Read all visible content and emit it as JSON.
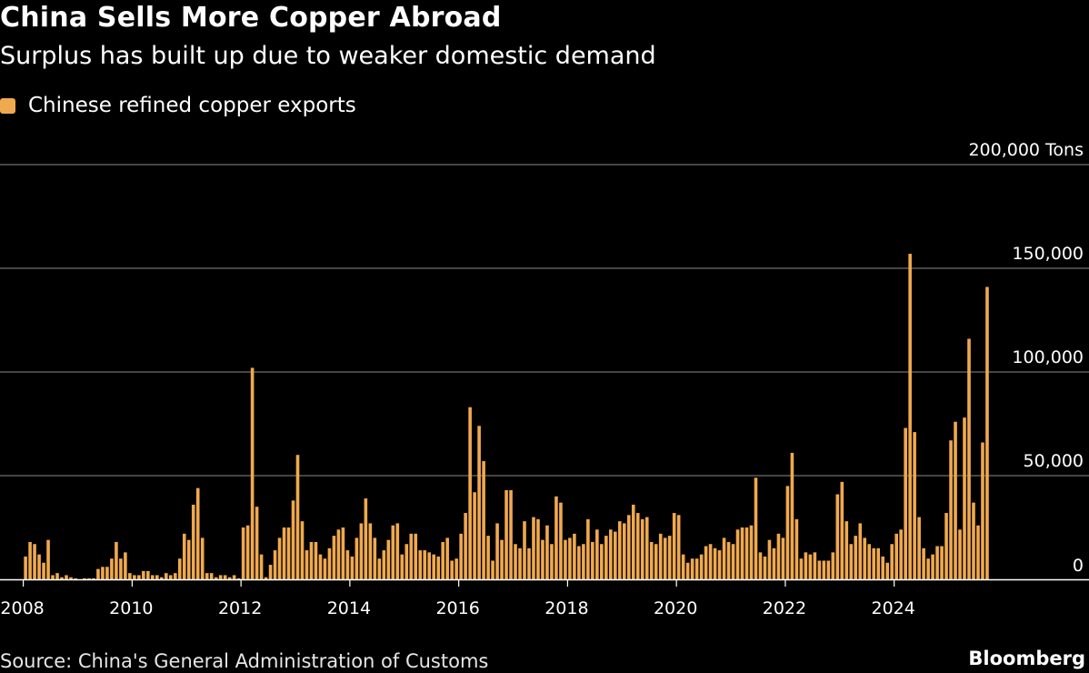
{
  "header": {
    "title": "China Sells More Copper Abroad",
    "subtitle": "Surplus has built up due to weaker domestic demand"
  },
  "legend": {
    "label": "Chinese refined copper exports"
  },
  "footer": {
    "source": "Source: China's General Administration of Customs",
    "brand": "Bloomberg"
  },
  "colors": {
    "background": "#000000",
    "bar": "#f0a94e",
    "grid": "#8a8a8a",
    "axis": "#ffffff",
    "text": "#ffffff"
  },
  "chart_data": {
    "type": "bar",
    "series": [
      {
        "name": "Chinese refined copper exports",
        "start": "2008-01",
        "frequency": "monthly",
        "values": [
          11000,
          18000,
          17000,
          12000,
          8000,
          19000,
          2000,
          3000,
          1000,
          2000,
          1000,
          500,
          0,
          500,
          500,
          500,
          5000,
          6000,
          6000,
          10000,
          18000,
          10000,
          13000,
          3000,
          2000,
          2000,
          4000,
          4000,
          2000,
          2000,
          1000,
          3000,
          2000,
          3000,
          10000,
          22000,
          19000,
          36000,
          44000,
          20000,
          3000,
          3000,
          1000,
          2000,
          2000,
          1000,
          2000,
          500,
          25000,
          26000,
          102000,
          35000,
          12000,
          1000,
          7000,
          14000,
          20000,
          25000,
          25000,
          38000,
          60000,
          28000,
          14000,
          18000,
          18000,
          12000,
          10000,
          15000,
          21000,
          24000,
          25000,
          14000,
          11000,
          20000,
          27000,
          39000,
          27000,
          20000,
          10000,
          14000,
          19000,
          26000,
          27000,
          12000,
          17000,
          22000,
          22000,
          14000,
          14000,
          13000,
          12000,
          11000,
          18000,
          20000,
          9000,
          10000,
          22000,
          32000,
          83000,
          42000,
          74000,
          57000,
          21000,
          9000,
          27000,
          19000,
          43000,
          43000,
          17000,
          15000,
          28000,
          15000,
          30000,
          29000,
          19000,
          26000,
          17000,
          40000,
          37000,
          19000,
          20000,
          22000,
          16000,
          17000,
          29000,
          18000,
          24000,
          17000,
          21000,
          24000,
          23000,
          28000,
          27000,
          31000,
          36000,
          32000,
          29000,
          30000,
          18000,
          17000,
          22000,
          20000,
          21000,
          32000,
          31000,
          12000,
          8000,
          10000,
          10000,
          12000,
          16000,
          17000,
          15000,
          14000,
          20000,
          18000,
          17000,
          24000,
          25000,
          25000,
          26000,
          49000,
          13000,
          11000,
          19000,
          15000,
          22000,
          20000,
          45000,
          61000,
          29000,
          10000,
          13000,
          12000,
          13000,
          9000,
          9000,
          9000,
          13000,
          41000,
          47000,
          28000,
          17000,
          21000,
          27000,
          20000,
          17000,
          15000,
          15000,
          11000,
          8000,
          17000,
          22000,
          24000,
          73000,
          157000,
          71000,
          30000,
          15000,
          10000,
          12000,
          16000,
          16000,
          32000,
          67000,
          76000,
          24000,
          78000,
          116000,
          37000,
          26000,
          66000,
          141000
        ]
      }
    ],
    "x_tick_labels": [
      "2008",
      "2010",
      "2012",
      "2014",
      "2016",
      "2018",
      "2020",
      "2022",
      "2024"
    ],
    "xlim": [
      "2008-01",
      "2025-10"
    ],
    "y_ticks": [
      0,
      50000,
      100000,
      150000,
      200000
    ],
    "y_tick_labels": [
      "0",
      "50,000",
      "100,000",
      "150,000",
      "200,000 Tons"
    ],
    "ylim": [
      0,
      200000
    ],
    "xlabel": "",
    "ylabel": "",
    "grid": "horizontal",
    "y_axis_position": "right"
  }
}
